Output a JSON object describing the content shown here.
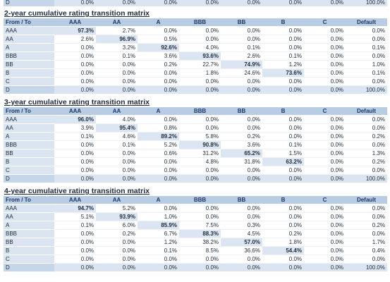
{
  "top_fragment": {
    "label": "D",
    "values": [
      "0.0%",
      "0.0%",
      "0.0%",
      "0.0%",
      "0.0%",
      "0.0%",
      "0.0%",
      "100.0%"
    ]
  },
  "matrices": [
    {
      "title": "2-year cumulative rating transition matrix",
      "header": [
        "From / To",
        "AAA",
        "AA",
        "A",
        "BBB",
        "BB",
        "B",
        "C",
        "Default"
      ],
      "rows": [
        {
          "label": "AAA",
          "values": [
            "97.3%",
            "2.7%",
            "0.0%",
            "0.0%",
            "0.0%",
            "0.0%",
            "0.0%",
            "0.0%"
          ]
        },
        {
          "label": "AA",
          "values": [
            "2.6%",
            "96.9%",
            "0.5%",
            "0.0%",
            "0.0%",
            "0.0%",
            "0.0%",
            "0.0%"
          ]
        },
        {
          "label": "A",
          "values": [
            "0.0%",
            "3.2%",
            "92.6%",
            "4.0%",
            "0.1%",
            "0.0%",
            "0.0%",
            "0.1%"
          ]
        },
        {
          "label": "BBB",
          "values": [
            "0.0%",
            "0.1%",
            "3.6%",
            "93.6%",
            "2.6%",
            "0.1%",
            "0.0%",
            "0.0%"
          ]
        },
        {
          "label": "BB",
          "values": [
            "0.0%",
            "0.0%",
            "0.2%",
            "22.7%",
            "74.9%",
            "1.2%",
            "0.0%",
            "1.0%"
          ]
        },
        {
          "label": "B",
          "values": [
            "0.0%",
            "0.0%",
            "0.0%",
            "1.8%",
            "24.6%",
            "73.6%",
            "0.0%",
            "0.1%"
          ]
        },
        {
          "label": "C",
          "values": [
            "0.0%",
            "0.0%",
            "0.0%",
            "0.0%",
            "0.0%",
            "0.0%",
            "0.0%",
            "0.0%"
          ]
        },
        {
          "label": "D",
          "values": [
            "0.0%",
            "0.0%",
            "0.0%",
            "0.0%",
            "0.0%",
            "0.0%",
            "0.0%",
            "100.0%"
          ]
        }
      ]
    },
    {
      "title": "3-year cumulative rating transition matrix",
      "header": [
        "From / To",
        "AAA",
        "AA",
        "A",
        "BBB",
        "BB",
        "B",
        "C",
        "Default"
      ],
      "rows": [
        {
          "label": "AAA",
          "values": [
            "96.0%",
            "4.0%",
            "0.0%",
            "0.0%",
            "0.0%",
            "0.0%",
            "0.0%",
            "0.0%"
          ]
        },
        {
          "label": "AA",
          "values": [
            "3.9%",
            "95.4%",
            "0.8%",
            "0.0%",
            "0.0%",
            "0.0%",
            "0.0%",
            "0.0%"
          ]
        },
        {
          "label": "A",
          "values": [
            "0.1%",
            "4.6%",
            "89.2%",
            "5.8%",
            "0.2%",
            "0.0%",
            "0.0%",
            "0.2%"
          ]
        },
        {
          "label": "BBB",
          "values": [
            "0.0%",
            "0.1%",
            "5.2%",
            "90.8%",
            "3.6%",
            "0.1%",
            "0.0%",
            "0.0%"
          ]
        },
        {
          "label": "BB",
          "values": [
            "0.0%",
            "0.0%",
            "0.6%",
            "31.2%",
            "65.2%",
            "1.5%",
            "0.0%",
            "1.3%"
          ]
        },
        {
          "label": "B",
          "values": [
            "0.0%",
            "0.0%",
            "0.0%",
            "4.8%",
            "31.8%",
            "63.2%",
            "0.0%",
            "0.2%"
          ]
        },
        {
          "label": "C",
          "values": [
            "0.0%",
            "0.0%",
            "0.0%",
            "0.0%",
            "0.0%",
            "0.0%",
            "0.0%",
            "0.0%"
          ]
        },
        {
          "label": "D",
          "values": [
            "0.0%",
            "0.0%",
            "0.0%",
            "0.0%",
            "0.0%",
            "0.0%",
            "0.0%",
            "100.0%"
          ]
        }
      ]
    },
    {
      "title": "4-year cumulative rating transition matrix",
      "header": [
        "From / To",
        "AAA",
        "AA",
        "A",
        "BBB",
        "BB",
        "B",
        "C",
        "Default"
      ],
      "rows": [
        {
          "label": "AAA",
          "values": [
            "94.7%",
            "5.2%",
            "0.0%",
            "0.0%",
            "0.0%",
            "0.0%",
            "0.0%",
            "0.0%"
          ]
        },
        {
          "label": "AA",
          "values": [
            "5.1%",
            "93.9%",
            "1.0%",
            "0.0%",
            "0.0%",
            "0.0%",
            "0.0%",
            "0.0%"
          ]
        },
        {
          "label": "A",
          "values": [
            "0.1%",
            "6.0%",
            "85.9%",
            "7.5%",
            "0.3%",
            "0.0%",
            "0.0%",
            "0.2%"
          ]
        },
        {
          "label": "BBB",
          "values": [
            "0.0%",
            "0.2%",
            "6.7%",
            "88.3%",
            "4.5%",
            "0.2%",
            "0.0%",
            "0.0%"
          ]
        },
        {
          "label": "BB",
          "values": [
            "0.0%",
            "0.0%",
            "1.2%",
            "38.2%",
            "57.0%",
            "1.8%",
            "0.0%",
            "1.7%"
          ]
        },
        {
          "label": "B",
          "values": [
            "0.0%",
            "0.0%",
            "0.1%",
            "8.5%",
            "36.6%",
            "54.4%",
            "0.0%",
            "0.4%"
          ]
        },
        {
          "label": "C",
          "values": [
            "0.0%",
            "0.0%",
            "0.0%",
            "0.0%",
            "0.0%",
            "0.0%",
            "0.0%",
            "0.0%"
          ]
        },
        {
          "label": "D",
          "values": [
            "0.0%",
            "0.0%",
            "0.0%",
            "0.0%",
            "0.0%",
            "0.0%",
            "0.0%",
            "100.0%"
          ]
        }
      ]
    }
  ]
}
